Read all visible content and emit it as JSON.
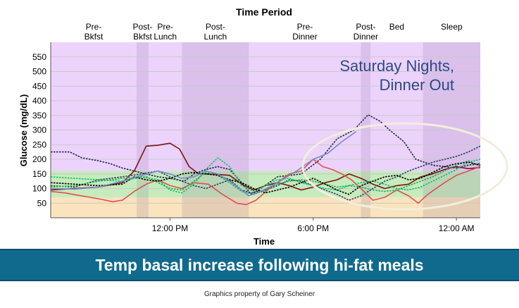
{
  "chart_data": {
    "type": "line",
    "title": "Time Period",
    "xlabel": "Time",
    "ylabel": "Glucose (mg/dL)",
    "annotation": [
      "Saturday Nights,",
      "Dinner Out"
    ],
    "x_range_hours": [
      7,
      25
    ],
    "ylim": [
      0,
      600
    ],
    "yticks": [
      50,
      100,
      150,
      200,
      250,
      300,
      350,
      400,
      450,
      500,
      550
    ],
    "xticks": [
      {
        "hour": 12,
        "label": "12:00 PM"
      },
      {
        "hour": 18,
        "label": "6:00 PM"
      },
      {
        "hour": 24,
        "label": "12:00 AM"
      }
    ],
    "periods": [
      {
        "label": "Pre-\nBkfst",
        "start": 7.0,
        "end": 10.6,
        "shaded": false
      },
      {
        "label": "Post-\nBkfst",
        "start": 10.6,
        "end": 11.1,
        "shaded": true
      },
      {
        "label": "Pre-\nLunch",
        "start": 11.1,
        "end": 12.5,
        "shaded": false
      },
      {
        "label": "Post-\nLunch",
        "start": 12.5,
        "end": 15.3,
        "shaded": true
      },
      {
        "label": "Pre-\nDinner",
        "start": 15.3,
        "end": 20.0,
        "shaded": false
      },
      {
        "label": "Post-\nDinner",
        "start": 20.0,
        "end": 20.4,
        "shaded": true
      },
      {
        "label": "Bed",
        "start": 20.4,
        "end": 22.6,
        "shaded": false
      },
      {
        "label": "Sleep",
        "start": 22.6,
        "end": 25.0,
        "shaded": true
      }
    ],
    "target_range": [
      70,
      160
    ],
    "series": [
      {
        "color": "#1f2a44",
        "style": "dash",
        "points": [
          [
            7,
            225
          ],
          [
            7.8,
            225
          ],
          [
            8.3,
            205
          ],
          [
            9,
            195
          ],
          [
            9.5,
            185
          ],
          [
            10,
            170
          ],
          [
            10.5,
            160
          ],
          [
            11,
            150
          ],
          [
            11.5,
            140
          ],
          [
            12,
            135
          ],
          [
            12.6,
            125
          ],
          [
            13,
            150
          ],
          [
            13.5,
            165
          ],
          [
            14,
            175
          ],
          [
            14.5,
            165
          ],
          [
            15,
            120
          ],
          [
            15.4,
            80
          ],
          [
            15.8,
            100
          ],
          [
            16.5,
            140
          ],
          [
            17.5,
            150
          ],
          [
            18.3,
            200
          ],
          [
            19,
            270
          ],
          [
            19.7,
            300
          ],
          [
            20.3,
            352
          ],
          [
            20.8,
            330
          ],
          [
            21.2,
            300
          ],
          [
            21.8,
            260
          ],
          [
            22.3,
            200
          ],
          [
            23,
            180
          ],
          [
            23.5,
            175
          ],
          [
            24,
            170
          ],
          [
            24.5,
            180
          ],
          [
            25,
            185
          ]
        ]
      },
      {
        "color": "#2c3e6b",
        "style": "dash",
        "points": [
          [
            7,
            110
          ],
          [
            8,
            105
          ],
          [
            9,
            130
          ],
          [
            10,
            140
          ],
          [
            10.8,
            150
          ],
          [
            11.5,
            160
          ],
          [
            12,
            140
          ],
          [
            12.5,
            125
          ],
          [
            13,
            110
          ],
          [
            13.5,
            100
          ],
          [
            14,
            115
          ],
          [
            14.5,
            130
          ],
          [
            15,
            95
          ],
          [
            15.4,
            85
          ],
          [
            16,
            95
          ],
          [
            16.5,
            110
          ],
          [
            17,
            130
          ],
          [
            17.5,
            125
          ],
          [
            18,
            110
          ],
          [
            18.5,
            95
          ],
          [
            19,
            80
          ],
          [
            19.5,
            60
          ],
          [
            20,
            75
          ],
          [
            20.5,
            100
          ],
          [
            21,
            125
          ],
          [
            21.5,
            140
          ],
          [
            22,
            160
          ],
          [
            22.5,
            175
          ],
          [
            23,
            190
          ],
          [
            23.5,
            200
          ],
          [
            24,
            210
          ],
          [
            24.5,
            225
          ],
          [
            25,
            245
          ]
        ]
      },
      {
        "color": "#7a1414",
        "style": "solid",
        "points": [
          [
            7,
            95
          ],
          [
            8,
            100
          ],
          [
            9,
            105
          ],
          [
            10,
            120
          ],
          [
            10.5,
            160
          ],
          [
            11,
            245
          ],
          [
            11.5,
            248
          ],
          [
            12,
            255
          ],
          [
            12.4,
            235
          ],
          [
            12.8,
            175
          ],
          [
            13.2,
            150
          ],
          [
            13.8,
            150
          ],
          [
            14.5,
            145
          ],
          [
            15,
            115
          ],
          [
            15.5,
            95
          ],
          [
            16,
            110
          ],
          [
            16.5,
            120
          ],
          [
            17,
            110
          ],
          [
            17.5,
            95
          ],
          [
            18,
            105
          ],
          [
            18.5,
            120
          ],
          [
            19,
            130
          ],
          [
            19.5,
            150
          ],
          [
            20,
            135
          ],
          [
            20.5,
            115
          ],
          [
            21,
            100
          ],
          [
            21.5,
            110
          ],
          [
            22,
            115
          ],
          [
            22.5,
            140
          ],
          [
            23,
            150
          ],
          [
            23.5,
            165
          ],
          [
            24,
            175
          ],
          [
            24.5,
            168
          ],
          [
            25,
            172
          ]
        ]
      },
      {
        "color": "#e05050",
        "style": "solid",
        "points": [
          [
            7,
            90
          ],
          [
            7.6,
            85
          ],
          [
            8.3,
            75
          ],
          [
            9,
            65
          ],
          [
            9.6,
            55
          ],
          [
            10,
            60
          ],
          [
            10.5,
            90
          ],
          [
            11,
            115
          ],
          [
            11.5,
            130
          ],
          [
            12,
            110
          ],
          [
            12.5,
            100
          ],
          [
            13,
            120
          ],
          [
            13.6,
            115
          ],
          [
            14.2,
            80
          ],
          [
            14.8,
            50
          ],
          [
            15.2,
            45
          ],
          [
            15.6,
            60
          ],
          [
            16.3,
            110
          ],
          [
            17,
            150
          ],
          [
            17.5,
            160
          ],
          [
            18,
            200
          ],
          [
            18.4,
            175
          ],
          [
            18.8,
            165
          ],
          [
            19.2,
            150
          ],
          [
            19.6,
            130
          ],
          [
            20,
            100
          ],
          [
            20.5,
            60
          ],
          [
            21,
            70
          ],
          [
            21.5,
            95
          ],
          [
            22,
            75
          ],
          [
            22.4,
            50
          ],
          [
            22.8,
            80
          ],
          [
            23.5,
            120
          ],
          [
            24,
            145
          ],
          [
            24.5,
            160
          ],
          [
            25,
            175
          ]
        ]
      },
      {
        "color": "#16c06a",
        "style": "dash",
        "points": [
          [
            7,
            140
          ],
          [
            8,
            135
          ],
          [
            9,
            130
          ],
          [
            10,
            125
          ],
          [
            10.8,
            140
          ],
          [
            11.5,
            130
          ],
          [
            12,
            95
          ],
          [
            12.5,
            85
          ],
          [
            13,
            115
          ],
          [
            13.5,
            165
          ],
          [
            14,
            205
          ],
          [
            14.5,
            175
          ],
          [
            15,
            110
          ],
          [
            15.5,
            90
          ],
          [
            16,
            110
          ],
          [
            16.5,
            130
          ],
          [
            17,
            135
          ],
          [
            17.5,
            120
          ],
          [
            18,
            110
          ],
          [
            18.5,
            100
          ],
          [
            19,
            95
          ],
          [
            19.5,
            110
          ],
          [
            20,
            120
          ],
          [
            20.5,
            125
          ],
          [
            21,
            115
          ],
          [
            21.5,
            100
          ],
          [
            22,
            95
          ],
          [
            22.5,
            105
          ],
          [
            23,
            125
          ],
          [
            23.5,
            145
          ],
          [
            24,
            165
          ],
          [
            24.5,
            190
          ],
          [
            25,
            200
          ]
        ]
      },
      {
        "color": "#22aa55",
        "style": "dash",
        "points": [
          [
            7,
            105
          ],
          [
            8,
            110
          ],
          [
            9,
            125
          ],
          [
            10,
            135
          ],
          [
            11,
            140
          ],
          [
            11.5,
            120
          ],
          [
            12,
            100
          ],
          [
            12.5,
            95
          ],
          [
            13,
            125
          ],
          [
            13.5,
            155
          ],
          [
            14,
            145
          ],
          [
            14.5,
            120
          ],
          [
            15,
            90
          ],
          [
            15.5,
            80
          ],
          [
            16,
            95
          ],
          [
            16.5,
            115
          ],
          [
            17,
            125
          ],
          [
            17.5,
            130
          ],
          [
            18,
            125
          ],
          [
            18.5,
            115
          ],
          [
            19,
            105
          ],
          [
            19.5,
            110
          ],
          [
            20,
            105
          ],
          [
            20.5,
            95
          ],
          [
            21,
            90
          ],
          [
            21.5,
            95
          ],
          [
            22,
            110
          ],
          [
            22.5,
            125
          ],
          [
            23,
            140
          ],
          [
            23.5,
            160
          ],
          [
            24,
            180
          ],
          [
            24.5,
            195
          ],
          [
            25,
            175
          ]
        ]
      },
      {
        "color": "#000000",
        "style": "dash",
        "points": [
          [
            7,
            120
          ],
          [
            8,
            115
          ],
          [
            9,
            110
          ],
          [
            10,
            115
          ],
          [
            10.5,
            140
          ],
          [
            11,
            130
          ],
          [
            11.5,
            125
          ],
          [
            12,
            135
          ],
          [
            12.5,
            150
          ],
          [
            13,
            155
          ],
          [
            13.5,
            150
          ],
          [
            14,
            145
          ],
          [
            14.5,
            130
          ],
          [
            15,
            120
          ],
          [
            15.5,
            100
          ],
          [
            16,
            85
          ],
          [
            16.5,
            95
          ],
          [
            17,
            105
          ],
          [
            17.5,
            120
          ],
          [
            18,
            135
          ],
          [
            18.5,
            115
          ],
          [
            19,
            95
          ],
          [
            19.5,
            80
          ],
          [
            20,
            110
          ],
          [
            20.5,
            125
          ],
          [
            21,
            140
          ],
          [
            21.5,
            145
          ],
          [
            22,
            130
          ],
          [
            22.5,
            135
          ],
          [
            23,
            155
          ],
          [
            23.5,
            175
          ],
          [
            24,
            185
          ],
          [
            24.5,
            190
          ],
          [
            25,
            180
          ]
        ]
      },
      {
        "color": "#7b88c8",
        "style": "solid",
        "points": [
          [
            7,
            100
          ],
          [
            8,
            98
          ],
          [
            9,
            105
          ],
          [
            10,
            125
          ],
          [
            10.8,
            145
          ],
          [
            11.5,
            160
          ],
          [
            12,
            150
          ],
          [
            12.5,
            135
          ],
          [
            13,
            140
          ],
          [
            13.5,
            160
          ],
          [
            14,
            150
          ],
          [
            14.5,
            125
          ],
          [
            15,
            95
          ],
          [
            15.3,
            75
          ],
          [
            15.8,
            90
          ],
          [
            16.5,
            120
          ],
          [
            17.3,
            160
          ],
          [
            18,
            200
          ],
          [
            18.6,
            220
          ],
          [
            19.2,
            260
          ],
          [
            19.8,
            295
          ]
        ]
      }
    ]
  },
  "banner_text": "Temp basal increase following hi-fat meals",
  "credit_text": "Graphics property of Gary Scheiner"
}
